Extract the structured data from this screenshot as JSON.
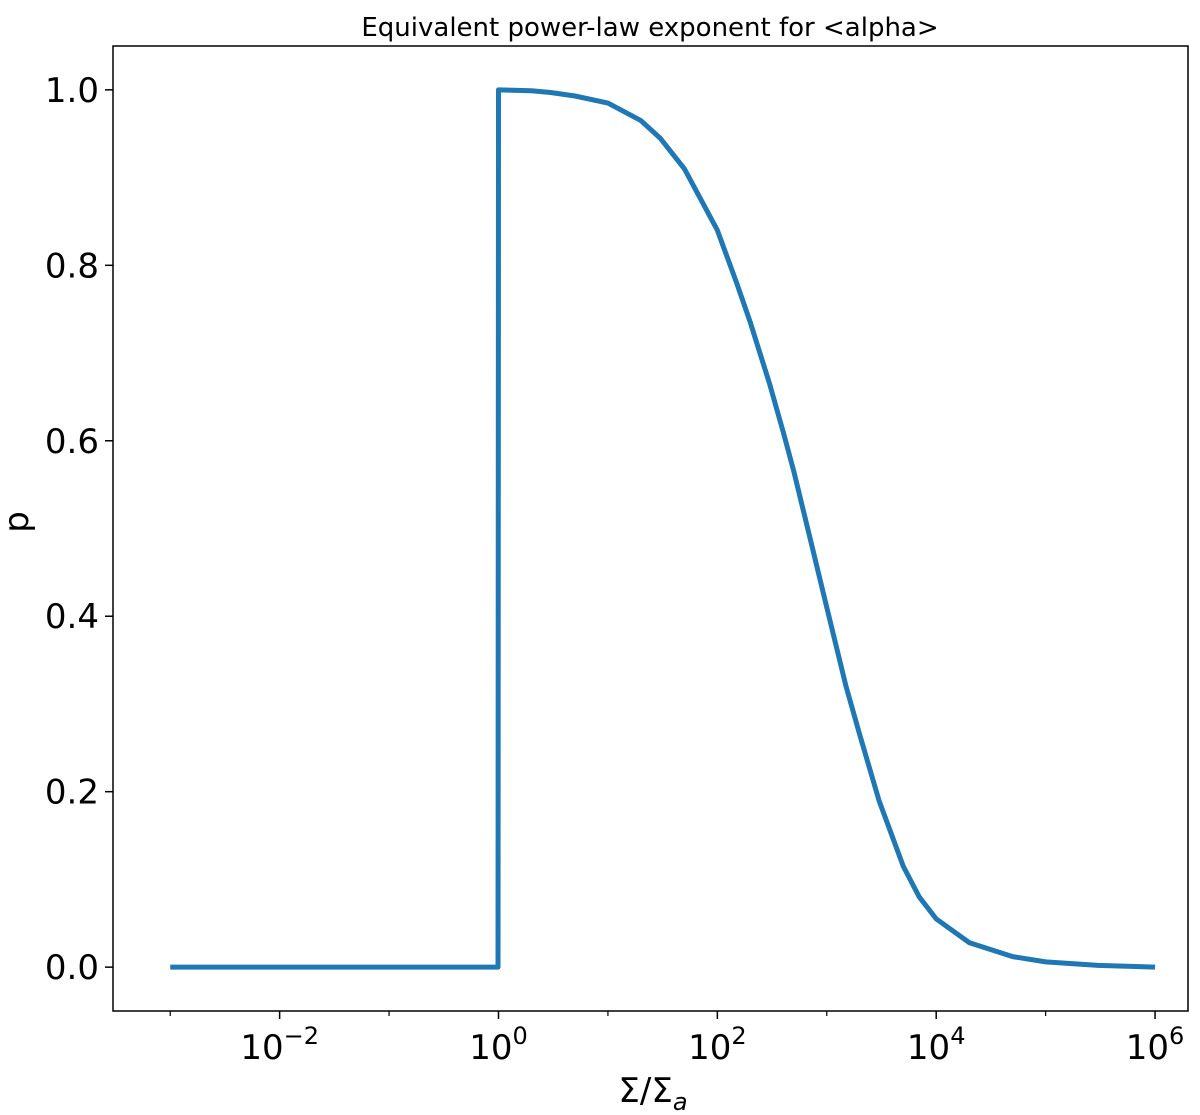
{
  "chart_data": {
    "type": "line",
    "title": "Equivalent power-law exponent for <alpha>",
    "xlabel": "Σ/Σₐ",
    "ylabel": "p",
    "xscale": "log",
    "xlim": [
      0.0003,
      2000000
    ],
    "ylim": [
      -0.05,
      1.05
    ],
    "grid": false,
    "color": "#1f77b4",
    "xticks": [
      {
        "value": 0.01,
        "base": "10",
        "exp": "−2"
      },
      {
        "value": 1,
        "base": "10",
        "exp": "0"
      },
      {
        "value": 100,
        "base": "10",
        "exp": "2"
      },
      {
        "value": 10000,
        "base": "10",
        "exp": "4"
      },
      {
        "value": 1000000,
        "base": "10",
        "exp": "6"
      }
    ],
    "yticks": [
      {
        "value": 0.0,
        "label": "0.0"
      },
      {
        "value": 0.2,
        "label": "0.2"
      },
      {
        "value": 0.4,
        "label": "0.4"
      },
      {
        "value": 0.6,
        "label": "0.6"
      },
      {
        "value": 0.8,
        "label": "0.8"
      },
      {
        "value": 1.0,
        "label": "1.0"
      }
    ],
    "series": [
      {
        "x": [
          0.001,
          0.01,
          0.1,
          0.99,
          1.0,
          1.01,
          2,
          3,
          5,
          10,
          20,
          30,
          50,
          100,
          150,
          200,
          300,
          400,
          500,
          700,
          1000,
          1500,
          2000,
          3000,
          5000,
          7000,
          10000,
          20000,
          50000,
          100000,
          300000,
          1000000
        ],
        "y": [
          0.0,
          0.0,
          0.0,
          0.0,
          1.0,
          1.0,
          0.999,
          0.997,
          0.993,
          0.985,
          0.965,
          0.945,
          0.91,
          0.84,
          0.78,
          0.735,
          0.665,
          0.61,
          0.565,
          0.49,
          0.41,
          0.32,
          0.265,
          0.19,
          0.115,
          0.08,
          0.055,
          0.028,
          0.012,
          0.006,
          0.002,
          0.0
        ]
      }
    ]
  }
}
